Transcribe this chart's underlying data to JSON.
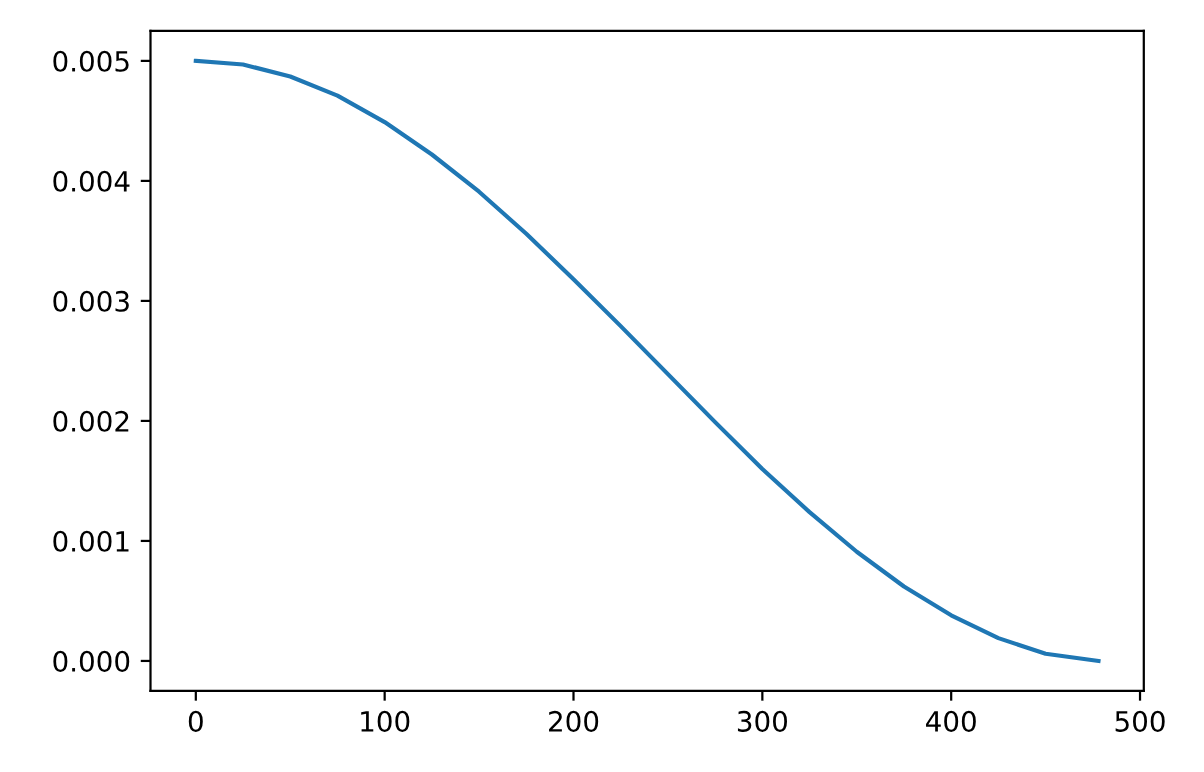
{
  "chart_data": {
    "type": "line",
    "x": [
      0,
      25,
      50,
      75,
      100,
      125,
      150,
      175,
      200,
      225,
      250,
      275,
      300,
      325,
      350,
      375,
      400,
      425,
      450,
      478
    ],
    "series": [
      {
        "color": "#1f77b4",
        "values": [
          0.005,
          0.00497,
          0.00487,
          0.00471,
          0.00449,
          0.00422,
          0.00391,
          0.00356,
          0.00318,
          0.00279,
          0.00239,
          0.00199,
          0.0016,
          0.00124,
          0.00091,
          0.00062,
          0.00038,
          0.00019,
          6e-05,
          0.0
        ]
      }
    ],
    "xlim": [
      -24,
      502
    ],
    "xticks": [
      0,
      100,
      200,
      300,
      400,
      500
    ],
    "ylim": [
      -0.00025,
      0.00525
    ],
    "yticks": [
      {
        "value": 0,
        "label": "0.000"
      },
      {
        "value": 0.001,
        "label": "0.001"
      },
      {
        "value": 0.002,
        "label": "0.002"
      },
      {
        "value": 0.003,
        "label": "0.003"
      },
      {
        "value": 0.004,
        "label": "0.004"
      },
      {
        "value": 0.005,
        "label": "0.005"
      }
    ],
    "grid": false,
    "marker": "none",
    "line_style": "solid"
  }
}
